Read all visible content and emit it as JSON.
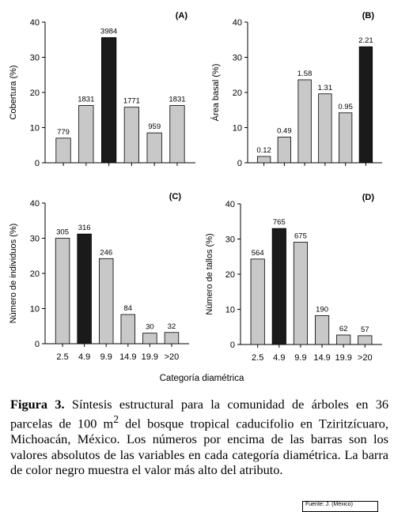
{
  "chart_data": [
    {
      "type": "bar",
      "panel": "(A)",
      "ylabel": "Cobertura (%)",
      "ylim": [
        0,
        40
      ],
      "yticks": [
        0,
        10,
        20,
        30,
        40
      ],
      "categories": [
        "2.5",
        "4.9",
        "9.9",
        "14.9",
        "19.9",
        ">20"
      ],
      "values": [
        7,
        16.3,
        35.6,
        15.8,
        8.5,
        16.3
      ],
      "data_labels": [
        "779",
        "1831",
        "3984",
        "1771",
        "959",
        "1831"
      ],
      "highlight_index": 2
    },
    {
      "type": "bar",
      "panel": "(B)",
      "ylabel": "Área basal (%)",
      "ylim": [
        0,
        40
      ],
      "yticks": [
        0,
        10,
        20,
        30,
        40
      ],
      "categories": [
        "2.5",
        "4.9",
        "9.9",
        "14.9",
        "19.9",
        ">20"
      ],
      "values": [
        1.8,
        7.3,
        23.6,
        19.6,
        14.2,
        33
      ],
      "data_labels": [
        "0.12",
        "0.49",
        "1.58",
        "1.31",
        "0.95",
        "2.21"
      ],
      "highlight_index": 5
    },
    {
      "type": "bar",
      "panel": "(C)",
      "ylabel": "Número de individuos (%)",
      "ylim": [
        0,
        40
      ],
      "yticks": [
        0,
        10,
        20,
        30,
        40
      ],
      "categories": [
        "2.5",
        "4.9",
        "9.9",
        "14.9",
        "19.9",
        ">20"
      ],
      "values": [
        30,
        31.2,
        24.2,
        8.3,
        3,
        3.2
      ],
      "data_labels": [
        "305",
        "316",
        "246",
        "84",
        "30",
        "32"
      ],
      "highlight_index": 1
    },
    {
      "type": "bar",
      "panel": "(D)",
      "ylabel": "Número de tallos (%)",
      "ylim": [
        0,
        40
      ],
      "yticks": [
        0,
        10,
        20,
        30,
        40
      ],
      "categories": [
        "2.5",
        "4.9",
        "9.9",
        "14.9",
        "19.9",
        ">20"
      ],
      "values": [
        24.3,
        33,
        29.1,
        8.2,
        2.7,
        2.5
      ],
      "data_labels": [
        "564",
        "765",
        "675",
        "190",
        "62",
        "57"
      ],
      "highlight_index": 1
    }
  ],
  "xlabel": "Categoría diamétrica",
  "colors": {
    "bar": "#c8c8c8",
    "highlight": "#1a1a1a",
    "stroke": "#000000"
  },
  "caption": {
    "label": "Figura 3.",
    "text": " Síntesis estructural para la comunidad de árboles en 36 parcelas de 100 m",
    "sup": "2",
    "text2": " del bosque tropical caducifolio en Tziritzícuaro, Michoacán, México. Los números por encima de las barras son los valores absolutos de las variables en cada categoría diamétrica. La barra de color negro muestra el valor más alto del atributo."
  },
  "footer": "Fuente: J. (México)"
}
